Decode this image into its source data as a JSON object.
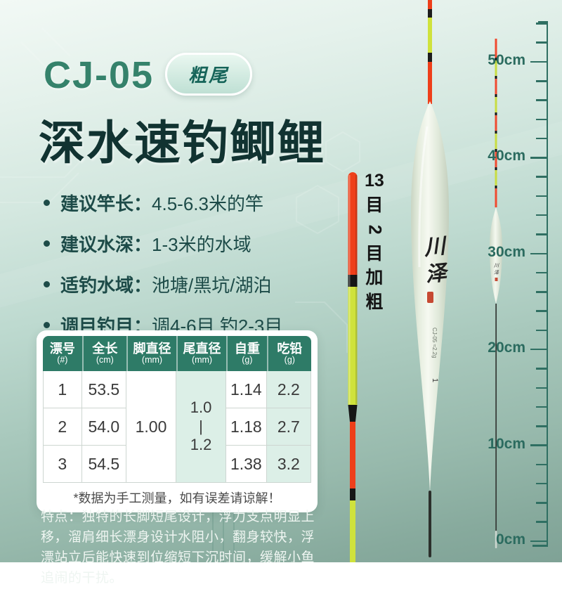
{
  "header": {
    "model": "CJ-05",
    "badge": "粗尾",
    "title": "深水速钓鲫鲤"
  },
  "specs": [
    {
      "label": "建议竿长：",
      "value": "4.5-6.3米的竿"
    },
    {
      "label": "建议水深：",
      "value": "1-3米的水域"
    },
    {
      "label": "适钓水域：",
      "value": "池塘/黑坑/湖泊"
    },
    {
      "label": "调目钓目：",
      "value": "调4-6目 钓2-3目"
    }
  ],
  "table": {
    "headers": [
      {
        "name": "漂号",
        "unit": "(#)"
      },
      {
        "name": "全长",
        "unit": "(cm)"
      },
      {
        "name": "脚直径",
        "unit": "(mm)"
      },
      {
        "name": "尾直径",
        "unit": "(mm)"
      },
      {
        "name": "自重",
        "unit": "(g)"
      },
      {
        "name": "吃铅",
        "unit": "(g)"
      }
    ],
    "rows": [
      {
        "no": "1",
        "length": "53.5",
        "weight": "1.14",
        "lead": "2.2"
      },
      {
        "no": "2",
        "length": "54.0",
        "weight": "1.18",
        "lead": "2.7"
      },
      {
        "no": "3",
        "length": "54.5",
        "weight": "1.38",
        "lead": "3.2"
      }
    ],
    "foot_diameter": "1.00",
    "tail_diameter": [
      "1.0",
      "|",
      "1.2"
    ],
    "note": "*数据为手工测量，如有误差请谅解！"
  },
  "features": "特点：独特的长脚短尾设计，浮力支点明显上移，溜肩细长漂身设计水阻小，翻身较快，浮漂站立后能快速到位缩短下沉时间，缓解小鱼追闹的干扰。",
  "annotation_chars": [
    "13",
    "目",
    "2",
    "目",
    "加",
    "粗"
  ],
  "float_marks": {
    "brand_chars": [
      "川",
      "泽"
    ],
    "model_label": "CJ-05 ≈2.2g",
    "size_label": "1"
  },
  "ruler": {
    "labels": [
      "50cm",
      "40cm",
      "30cm",
      "20cm",
      "10cm",
      "0cm"
    ]
  },
  "colors": {
    "accent_green": "#35826b",
    "title_dark": "#113331",
    "badge_text": "#156459",
    "table_header_bg": "#2e7b67",
    "highlight_cell": "#dcefe7",
    "tail_red": "#ee3f1a",
    "tail_yellow": "#cfe23c",
    "float_body": "#e9efe3",
    "ruler_green": "#2f6f62"
  }
}
